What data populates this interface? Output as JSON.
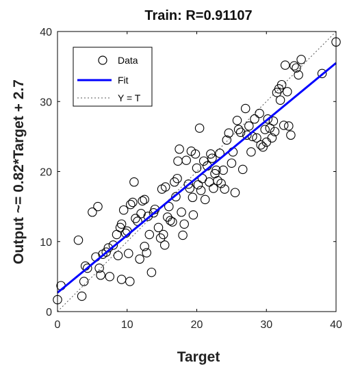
{
  "chart_data": {
    "type": "scatter",
    "title": "Train: R=0.91107",
    "xlabel": "Target",
    "ylabel": "Output ~= 0.82*Target + 2.7",
    "xlim": [
      0,
      40
    ],
    "ylim": [
      0,
      40
    ],
    "xticks": [
      "0",
      "10",
      "20",
      "30",
      "40"
    ],
    "yticks": [
      "0",
      "10",
      "20",
      "30",
      "40"
    ],
    "grid": false,
    "legend_position": "top-left",
    "legend": [
      {
        "label": "Data",
        "marker": "circle"
      },
      {
        "label": "Fit",
        "style": "solid"
      },
      {
        "label": "Y = T",
        "style": "dotted"
      }
    ],
    "fit": {
      "slope": 0.82,
      "intercept": 2.7,
      "color": "#0000ff"
    },
    "identity_line": {
      "color": "#555555"
    },
    "marker_color": "#000000",
    "points": [
      [
        0,
        1.7
      ],
      [
        0.5,
        3.7
      ],
      [
        3,
        10.2
      ],
      [
        3.5,
        2.2
      ],
      [
        3.8,
        4.3
      ],
      [
        4,
        6.5
      ],
      [
        4.3,
        6.2
      ],
      [
        5,
        14.2
      ],
      [
        5.5,
        7.8
      ],
      [
        5.8,
        15
      ],
      [
        6,
        6.2
      ],
      [
        6.2,
        5.2
      ],
      [
        6.5,
        8.2
      ],
      [
        7,
        8.5
      ],
      [
        7.3,
        9.1
      ],
      [
        7.5,
        5
      ],
      [
        8,
        9.5
      ],
      [
        8.5,
        11
      ],
      [
        8.7,
        8
      ],
      [
        9,
        12
      ],
      [
        9.2,
        12.5
      ],
      [
        9.2,
        4.6
      ],
      [
        9.5,
        14.5
      ],
      [
        9.8,
        11.2
      ],
      [
        10,
        11.5
      ],
      [
        10.2,
        8.3
      ],
      [
        10.4,
        4.3
      ],
      [
        10.5,
        15.3
      ],
      [
        10.8,
        15.6
      ],
      [
        11,
        18.5
      ],
      [
        11.2,
        13.3
      ],
      [
        11.5,
        12.9
      ],
      [
        11.8,
        7.5
      ],
      [
        12,
        14
      ],
      [
        12.2,
        15.8
      ],
      [
        12.5,
        16
      ],
      [
        12.5,
        9.3
      ],
      [
        12.8,
        8.4
      ],
      [
        13,
        13.6
      ],
      [
        13.2,
        11
      ],
      [
        13.5,
        5.6
      ],
      [
        13.8,
        14.1
      ],
      [
        14,
        14.6
      ],
      [
        14.5,
        12
      ],
      [
        14.8,
        10.5
      ],
      [
        15,
        17.5
      ],
      [
        15.2,
        11
      ],
      [
        15.4,
        9.5
      ],
      [
        15.5,
        17.8
      ],
      [
        15.8,
        13.5
      ],
      [
        16,
        15
      ],
      [
        16.2,
        13
      ],
      [
        16.5,
        12.8
      ],
      [
        16.8,
        18.5
      ],
      [
        17,
        16.4
      ],
      [
        17.2,
        19
      ],
      [
        17.3,
        21.5
      ],
      [
        17.5,
        23.2
      ],
      [
        17.8,
        14.2
      ],
      [
        18,
        10.9
      ],
      [
        18.2,
        12.5
      ],
      [
        18.5,
        21.6
      ],
      [
        18.8,
        18.2
      ],
      [
        19,
        17.6
      ],
      [
        19.2,
        22.9
      ],
      [
        19.4,
        16.3
      ],
      [
        19.5,
        13.8
      ],
      [
        19.8,
        22.5
      ],
      [
        20,
        20.5
      ],
      [
        20.2,
        18.1
      ],
      [
        20.4,
        26.2
      ],
      [
        20.6,
        17.3
      ],
      [
        20.8,
        19
      ],
      [
        21,
        21.5
      ],
      [
        21.2,
        16
      ],
      [
        21.5,
        20.8
      ],
      [
        21.8,
        18.5
      ],
      [
        22,
        22.5
      ],
      [
        22.2,
        21.9
      ],
      [
        22.4,
        17.6
      ],
      [
        22.6,
        19.7
      ],
      [
        22.8,
        20.2
      ],
      [
        23,
        18.7
      ],
      [
        23.3,
        22.6
      ],
      [
        23.5,
        18.3
      ],
      [
        23.8,
        20.2
      ],
      [
        24,
        17.5
      ],
      [
        24.3,
        24.5
      ],
      [
        24.6,
        25.5
      ],
      [
        25,
        21.2
      ],
      [
        25.2,
        22.8
      ],
      [
        25.5,
        17
      ],
      [
        25.8,
        27.3
      ],
      [
        26,
        26
      ],
      [
        26.3,
        25.6
      ],
      [
        26.6,
        20.3
      ],
      [
        27,
        29
      ],
      [
        27.2,
        25.2
      ],
      [
        27.5,
        26.5
      ],
      [
        27.8,
        22.8
      ],
      [
        28,
        25
      ],
      [
        28.3,
        27.5
      ],
      [
        28.6,
        24.8
      ],
      [
        29,
        28.3
      ],
      [
        29.2,
        23.8
      ],
      [
        29.5,
        23.5
      ],
      [
        29.8,
        26
      ],
      [
        30,
        24.2
      ],
      [
        30.2,
        27.5
      ],
      [
        30.5,
        26.2
      ],
      [
        30.8,
        24.8
      ],
      [
        31,
        27.2
      ],
      [
        31.2,
        25.7
      ],
      [
        31.5,
        31.3
      ],
      [
        31.8,
        31.8
      ],
      [
        32,
        30.2
      ],
      [
        32.2,
        32.4
      ],
      [
        32.5,
        26.6
      ],
      [
        32.7,
        35.2
      ],
      [
        33,
        31.4
      ],
      [
        33.2,
        26.5
      ],
      [
        33.5,
        25.2
      ],
      [
        34,
        35.1
      ],
      [
        34.3,
        34.8
      ],
      [
        34.6,
        33.8
      ],
      [
        35,
        36
      ],
      [
        38,
        34
      ],
      [
        40,
        38.5
      ]
    ]
  }
}
